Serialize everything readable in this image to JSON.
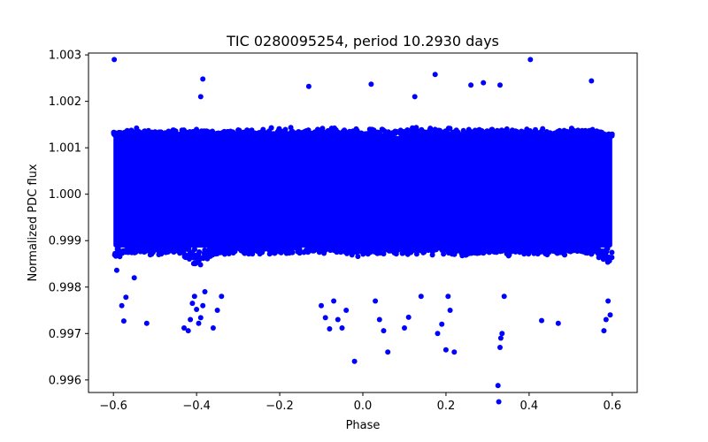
{
  "chart_data": {
    "type": "scatter",
    "title": "TIC 0280095254, period 10.2930 days",
    "xlabel": "Phase",
    "ylabel": "Normalized PDC flux",
    "xlim": [
      -0.66,
      0.66
    ],
    "ylim": [
      0.99573,
      1.00304
    ],
    "xticks": [
      -0.6,
      -0.4,
      -0.2,
      0.0,
      0.2,
      0.4,
      0.6
    ],
    "xtick_labels": [
      "−0.6",
      "−0.4",
      "−0.2",
      "0.0",
      "0.2",
      "0.4",
      "0.6"
    ],
    "yticks": [
      0.996,
      0.997,
      0.998,
      0.999,
      1.0,
      1.001,
      1.002,
      1.003
    ],
    "ytick_labels": [
      "0.996",
      "0.997",
      "0.998",
      "0.999",
      "1.000",
      "1.001",
      "1.002",
      "1.003"
    ],
    "grid": false,
    "marker_color": "#0000ff",
    "band": {
      "x_range": [
        -0.6,
        0.6
      ],
      "core_low": 0.99885,
      "core_high": 1.00125,
      "description": "dense band of points spanning full phase range"
    },
    "series": [
      {
        "name": "outliers",
        "x": [
          -0.592,
          -0.57,
          -0.575,
          -0.52,
          -0.58,
          -0.55,
          -0.43,
          -0.42,
          -0.415,
          -0.41,
          -0.405,
          -0.4,
          -0.395,
          -0.39,
          -0.385,
          -0.38,
          -0.36,
          -0.35,
          -0.34,
          -0.1,
          -0.09,
          -0.08,
          -0.07,
          -0.06,
          -0.05,
          -0.04,
          -0.02,
          0.03,
          0.04,
          0.05,
          0.06,
          0.1,
          0.11,
          0.14,
          0.18,
          0.19,
          0.2,
          0.205,
          0.21,
          0.22,
          0.325,
          0.327,
          0.33,
          0.332,
          0.335,
          0.34,
          0.43,
          0.47,
          0.58,
          0.585,
          0.59,
          0.595,
          -0.598,
          0.403,
          0.174,
          -0.385,
          -0.39,
          0.26,
          0.29,
          0.33,
          -0.13,
          0.02,
          0.125,
          0.55
        ],
        "y": [
          0.99836,
          0.99778,
          0.99727,
          0.99722,
          0.9976,
          0.9982,
          0.99712,
          0.99706,
          0.9973,
          0.99765,
          0.9978,
          0.99752,
          0.99722,
          0.99734,
          0.9976,
          0.9979,
          0.99712,
          0.9975,
          0.9978,
          0.9976,
          0.99734,
          0.9971,
          0.9977,
          0.9973,
          0.99712,
          0.9975,
          0.9964,
          0.9977,
          0.9973,
          0.99706,
          0.9966,
          0.99712,
          0.99735,
          0.9978,
          0.997,
          0.9972,
          0.99665,
          0.9978,
          0.9975,
          0.9966,
          0.99588,
          0.99553,
          0.9967,
          0.9969,
          0.997,
          0.9978,
          0.99728,
          0.99722,
          0.99706,
          0.9973,
          0.9977,
          0.9974,
          1.0029,
          1.0029,
          1.00258,
          1.00248,
          1.0021,
          1.00235,
          1.0024,
          1.00235,
          1.00232,
          1.00237,
          1.0021,
          1.00244
        ]
      }
    ]
  }
}
